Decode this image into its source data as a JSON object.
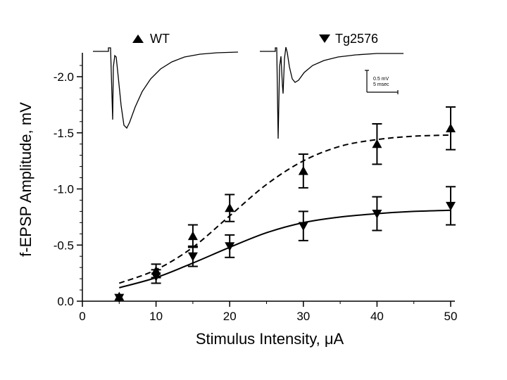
{
  "chart_data": {
    "type": "scatter",
    "xlabel": "Stimulus Intensity, μA",
    "ylabel": "f-EPSP Amplitude, mV",
    "xlim": [
      0,
      50
    ],
    "ylim": [
      0,
      -2.2
    ],
    "y_axis_inverted": true,
    "x_ticks": [
      0,
      10,
      20,
      30,
      40,
      50
    ],
    "x_tick_labels": [
      "0",
      "10",
      "20",
      "30",
      "40",
      "50"
    ],
    "y_ticks": [
      0,
      -0.5,
      -1.0,
      -1.5,
      -2.0
    ],
    "y_tick_labels": [
      "0.0",
      "-0.5",
      "-1.0",
      "-1.5",
      "-2.0"
    ],
    "grid": false,
    "legend_position": "top",
    "series": [
      {
        "name": "WT",
        "marker": "triangle-up",
        "fit_line": "dashed",
        "points": [
          {
            "x": 5,
            "y": -0.04,
            "err": 0.0
          },
          {
            "x": 10,
            "y": -0.27,
            "err": 0.06
          },
          {
            "x": 15,
            "y": -0.58,
            "err": 0.1
          },
          {
            "x": 20,
            "y": -0.83,
            "err": 0.12
          },
          {
            "x": 30,
            "y": -1.16,
            "err": 0.15
          },
          {
            "x": 40,
            "y": -1.4,
            "err": 0.18
          },
          {
            "x": 50,
            "y": -1.54,
            "err": 0.19
          }
        ]
      },
      {
        "name": "Tg2576",
        "marker": "triangle-down",
        "fit_line": "solid",
        "points": [
          {
            "x": 5,
            "y": -0.03,
            "err": 0.0
          },
          {
            "x": 10,
            "y": -0.22,
            "err": 0.06
          },
          {
            "x": 15,
            "y": -0.4,
            "err": 0.09
          },
          {
            "x": 20,
            "y": -0.49,
            "err": 0.1
          },
          {
            "x": 30,
            "y": -0.67,
            "err": 0.13
          },
          {
            "x": 40,
            "y": -0.78,
            "err": 0.15
          },
          {
            "x": 50,
            "y": -0.85,
            "err": 0.17
          }
        ]
      }
    ],
    "fits": {
      "WT": {
        "x": [
          5,
          10,
          15,
          20,
          25,
          30,
          35,
          40,
          45,
          50
        ],
        "y": [
          -0.16,
          -0.28,
          -0.48,
          -0.76,
          -1.04,
          -1.25,
          -1.38,
          -1.44,
          -1.47,
          -1.48
        ]
      },
      "Tg2576": {
        "x": [
          5,
          10,
          15,
          20,
          25,
          30,
          35,
          40,
          45,
          50
        ],
        "y": [
          -0.12,
          -0.21,
          -0.34,
          -0.48,
          -0.61,
          -0.7,
          -0.75,
          -0.78,
          -0.8,
          -0.81
        ]
      }
    },
    "scale_bar": {
      "amplitude_label": "0.5 mV",
      "time_label": "5 msec"
    }
  }
}
